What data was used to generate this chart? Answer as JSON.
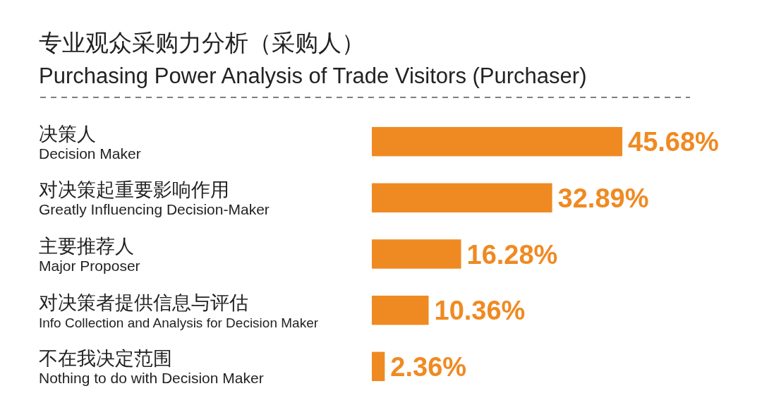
{
  "chart_data": {
    "type": "bar",
    "orientation": "horizontal",
    "title": "专业观众采购力分析（采购人）",
    "subtitle": "Purchasing Power Analysis of Trade Visitors (Purchaser)",
    "categories": [
      "决策人\nDecision Maker",
      "对决策起重要影响作用\nGreatly Influencing Decision-Maker",
      "主要推荐人\nMajor Proposer",
      "对决策者提供信息与评估\nInfo Collection and Analysis for Decision Maker",
      "不在我决定范围\nNothing to do with Decision Maker"
    ],
    "values": [
      45.68,
      32.89,
      16.28,
      10.36,
      2.36
    ],
    "value_labels": [
      "45.68%",
      "32.89%",
      "16.28%",
      "10.36%",
      "2.36%"
    ],
    "color": "#ef8a22"
  }
}
